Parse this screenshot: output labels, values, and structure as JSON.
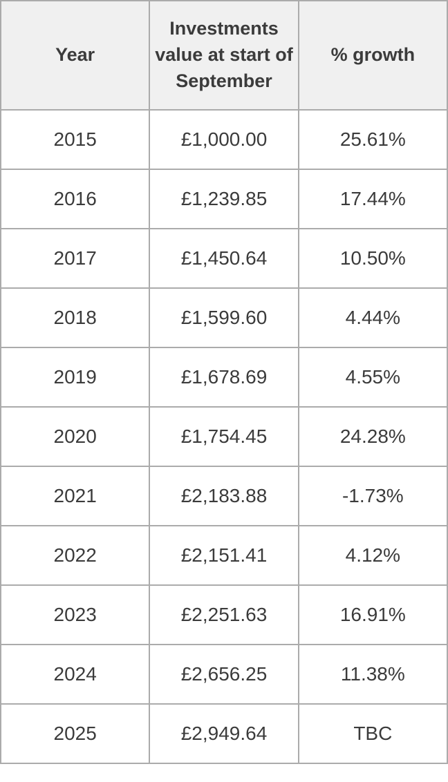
{
  "colors": {
    "border": "#ababab",
    "header_background": "#f0f0f0",
    "cell_background": "#ffffff",
    "text": "#3b3b3b"
  },
  "table": {
    "columns": [
      "Year",
      "Investments value at start of September",
      "% growth"
    ],
    "rows": [
      {
        "year": "2015",
        "value": "£1,000.00",
        "growth": "25.61%"
      },
      {
        "year": "2016",
        "value": "£1,239.85",
        "growth": "17.44%"
      },
      {
        "year": "2017",
        "value": "£1,450.64",
        "growth": "10.50%"
      },
      {
        "year": "2018",
        "value": "£1,599.60",
        "growth": "4.44%"
      },
      {
        "year": "2019",
        "value": "£1,678.69",
        "growth": "4.55%"
      },
      {
        "year": "2020",
        "value": "£1,754.45",
        "growth": "24.28%"
      },
      {
        "year": "2021",
        "value": "£2,183.88",
        "growth": "-1.73%"
      },
      {
        "year": "2022",
        "value": "£2,151.41",
        "growth": "4.12%"
      },
      {
        "year": "2023",
        "value": "£2,251.63",
        "growth": "16.91%"
      },
      {
        "year": "2024",
        "value": "£2,656.25",
        "growth": "11.38%"
      },
      {
        "year": "2025",
        "value": "£2,949.64",
        "growth": "TBC"
      }
    ]
  }
}
